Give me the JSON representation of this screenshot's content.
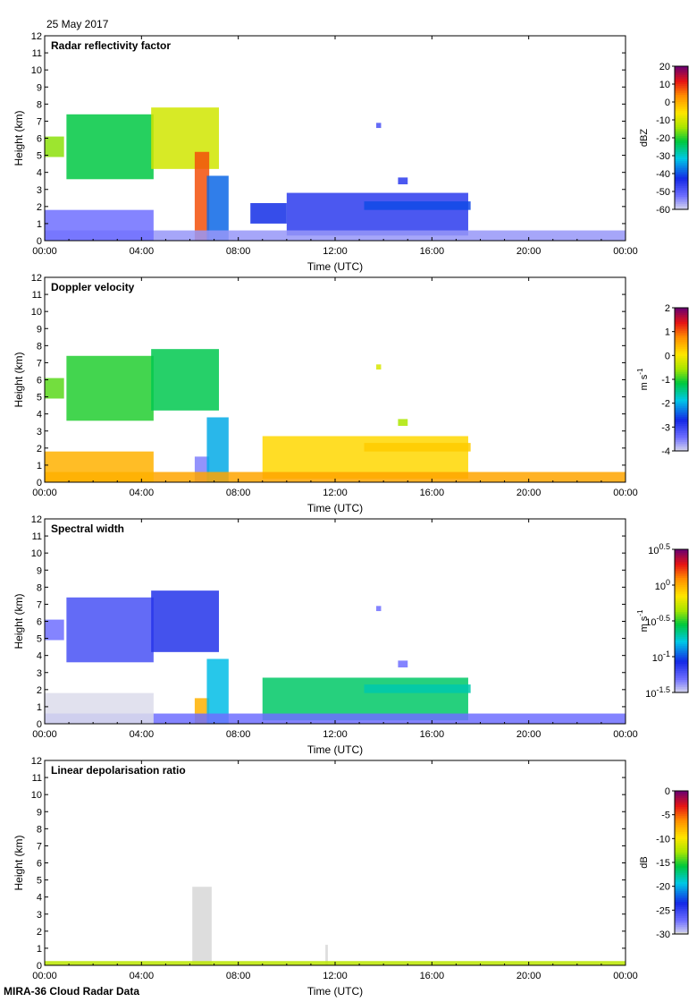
{
  "header": {
    "date": "25 May 2017"
  },
  "footer": {
    "text": "MIRA-36 Cloud Radar Data"
  },
  "chart_data": [
    {
      "type": "heatmap",
      "title": "Radar reflectivity factor",
      "xlabel": "Time (UTC)",
      "ylabel": "Height (km)",
      "x_ticks": [
        "00:00",
        "04:00",
        "08:00",
        "12:00",
        "16:00",
        "20:00",
        "00:00"
      ],
      "xlim_hours": [
        0,
        24
      ],
      "ylim_km": [
        0,
        12
      ],
      "y_ticks": [
        "0",
        "1",
        "2",
        "3",
        "4",
        "5",
        "6",
        "7",
        "8",
        "9",
        "10",
        "11",
        "12"
      ],
      "colorbar": {
        "unit": "dBZ",
        "range": [
          -60,
          20
        ],
        "ticks": [
          "20",
          "10",
          "0",
          "-10",
          "-20",
          "-30",
          "-40",
          "-50",
          "-60"
        ]
      },
      "features": [
        {
          "t0": 0.0,
          "t1": 0.8,
          "h0": 4.9,
          "h1": 6.1,
          "value": -15
        },
        {
          "t0": 0.9,
          "t1": 4.5,
          "h0": 3.6,
          "h1": 7.4,
          "value": -22
        },
        {
          "t0": 4.4,
          "t1": 7.2,
          "h0": 4.2,
          "h1": 7.8,
          "value": -10
        },
        {
          "t0": 6.2,
          "t1": 6.8,
          "h0": 0.0,
          "h1": 5.2,
          "value": 8
        },
        {
          "t0": 6.7,
          "t1": 7.6,
          "h0": 0.0,
          "h1": 3.8,
          "value": -38
        },
        {
          "t0": 8.5,
          "t1": 10.0,
          "h0": 1.0,
          "h1": 2.2,
          "value": -42
        },
        {
          "t0": 10.0,
          "t1": 17.5,
          "h0": 0.3,
          "h1": 2.8,
          "value": -45
        },
        {
          "t0": 13.2,
          "t1": 17.6,
          "h0": 1.8,
          "h1": 2.3,
          "value": -40
        },
        {
          "t0": 14.6,
          "t1": 15.0,
          "h0": 3.3,
          "h1": 3.7,
          "value": -45
        },
        {
          "t0": 13.7,
          "t1": 13.9,
          "h0": 6.6,
          "h1": 6.9,
          "value": -48
        },
        {
          "t0": 0.0,
          "t1": 24.0,
          "h0": 0.0,
          "h1": 0.6,
          "value": -55
        },
        {
          "t0": 0.0,
          "t1": 4.5,
          "h0": 0.0,
          "h1": 1.8,
          "value": -52
        }
      ]
    },
    {
      "type": "heatmap",
      "title": "Doppler velocity",
      "xlabel": "Time (UTC)",
      "ylabel": "Height (km)",
      "x_ticks": [
        "00:00",
        "04:00",
        "08:00",
        "12:00",
        "16:00",
        "20:00",
        "00:00"
      ],
      "xlim_hours": [
        0,
        24
      ],
      "ylim_km": [
        0,
        12
      ],
      "y_ticks": [
        "0",
        "1",
        "2",
        "3",
        "4",
        "5",
        "6",
        "7",
        "8",
        "9",
        "10",
        "11",
        "12"
      ],
      "colorbar": {
        "unit": "m s-1",
        "range": [
          -4,
          2
        ],
        "ticks": [
          "2",
          "1",
          "0",
          "-1",
          "-2",
          "-3",
          "-4"
        ]
      },
      "features": [
        {
          "t0": 0.0,
          "t1": 0.8,
          "h0": 4.9,
          "h1": 6.1,
          "value": -0.8
        },
        {
          "t0": 0.9,
          "t1": 4.5,
          "h0": 3.6,
          "h1": 7.4,
          "value": -1.0
        },
        {
          "t0": 4.4,
          "t1": 7.2,
          "h0": 4.2,
          "h1": 7.8,
          "value": -1.2
        },
        {
          "t0": 6.2,
          "t1": 6.8,
          "h0": 0.0,
          "h1": 1.5,
          "value": -3.5
        },
        {
          "t0": 6.7,
          "t1": 7.6,
          "h0": 0.0,
          "h1": 3.8,
          "value": -2.0
        },
        {
          "t0": 9.0,
          "t1": 17.5,
          "h0": 0.2,
          "h1": 2.7,
          "value": 0.2
        },
        {
          "t0": 13.2,
          "t1": 17.6,
          "h0": 1.8,
          "h1": 2.3,
          "value": 0.3
        },
        {
          "t0": 14.6,
          "t1": 15.0,
          "h0": 3.3,
          "h1": 3.7,
          "value": -0.5
        },
        {
          "t0": 13.7,
          "t1": 13.9,
          "h0": 6.6,
          "h1": 6.9,
          "value": -0.2
        },
        {
          "t0": 0.0,
          "t1": 24.0,
          "h0": 0.0,
          "h1": 0.6,
          "value": 0.6
        },
        {
          "t0": 0.0,
          "t1": 4.5,
          "h0": 0.0,
          "h1": 1.8,
          "value": 0.5
        }
      ]
    },
    {
      "type": "heatmap",
      "title": "Spectral width",
      "xlabel": "Time (UTC)",
      "ylabel": "Height (km)",
      "x_ticks": [
        "00:00",
        "04:00",
        "08:00",
        "12:00",
        "16:00",
        "20:00",
        "00:00"
      ],
      "xlim_hours": [
        0,
        24
      ],
      "ylim_km": [
        0,
        12
      ],
      "y_ticks": [
        "0",
        "1",
        "2",
        "3",
        "4",
        "5",
        "6",
        "7",
        "8",
        "9",
        "10",
        "11",
        "12"
      ],
      "colorbar": {
        "unit": "m s-1",
        "range_log10": [
          -1.5,
          0.5
        ],
        "ticks": [
          "0.5",
          "0",
          "-0.5",
          "-1",
          "-1.5"
        ],
        "tick_base": "10"
      },
      "features": [
        {
          "t0": 0.0,
          "t1": 0.8,
          "h0": 4.9,
          "h1": 6.1,
          "value": -1.3
        },
        {
          "t0": 0.9,
          "t1": 4.5,
          "h0": 3.6,
          "h1": 7.4,
          "value": -1.2
        },
        {
          "t0": 4.4,
          "t1": 7.2,
          "h0": 4.2,
          "h1": 7.8,
          "value": -1.1
        },
        {
          "t0": 6.2,
          "t1": 6.8,
          "h0": 0.0,
          "h1": 1.5,
          "value": 0.0
        },
        {
          "t0": 6.7,
          "t1": 7.6,
          "h0": 0.0,
          "h1": 3.8,
          "value": -0.8
        },
        {
          "t0": 9.0,
          "t1": 17.5,
          "h0": 0.2,
          "h1": 2.7,
          "value": -0.6
        },
        {
          "t0": 13.2,
          "t1": 17.6,
          "h0": 1.8,
          "h1": 2.3,
          "value": -0.7
        },
        {
          "t0": 14.6,
          "t1": 15.0,
          "h0": 3.3,
          "h1": 3.7,
          "value": -1.3
        },
        {
          "t0": 13.7,
          "t1": 13.9,
          "h0": 6.6,
          "h1": 6.9,
          "value": -1.3
        },
        {
          "t0": 0.0,
          "t1": 24.0,
          "h0": 0.0,
          "h1": 0.6,
          "value": -1.3
        },
        {
          "t0": 0.0,
          "t1": 4.5,
          "h0": 0.0,
          "h1": 1.8,
          "value": -1.5
        }
      ]
    },
    {
      "type": "heatmap",
      "title": "Linear depolarisation ratio",
      "xlabel": "Time (UTC)",
      "ylabel": "Height (km)",
      "x_ticks": [
        "00:00",
        "04:00",
        "08:00",
        "12:00",
        "16:00",
        "20:00",
        "00:00"
      ],
      "xlim_hours": [
        0,
        24
      ],
      "ylim_km": [
        0,
        12
      ],
      "y_ticks": [
        "0",
        "1",
        "2",
        "3",
        "4",
        "5",
        "6",
        "7",
        "8",
        "9",
        "10",
        "11",
        "12"
      ],
      "colorbar": {
        "unit": "dB",
        "range": [
          -30,
          0
        ],
        "ticks": [
          "0",
          "-5",
          "-10",
          "-15",
          "-20",
          "-25",
          "-30"
        ]
      },
      "features": [
        {
          "t0": 6.1,
          "t1": 6.9,
          "h0": 0.0,
          "h1": 4.6,
          "value": -30
        },
        {
          "t0": 11.6,
          "t1": 11.7,
          "h0": 0.0,
          "h1": 1.2,
          "value": -30
        },
        {
          "t0": 0.0,
          "t1": 24.0,
          "h0": 0.0,
          "h1": 0.25,
          "value": -12
        }
      ]
    }
  ]
}
